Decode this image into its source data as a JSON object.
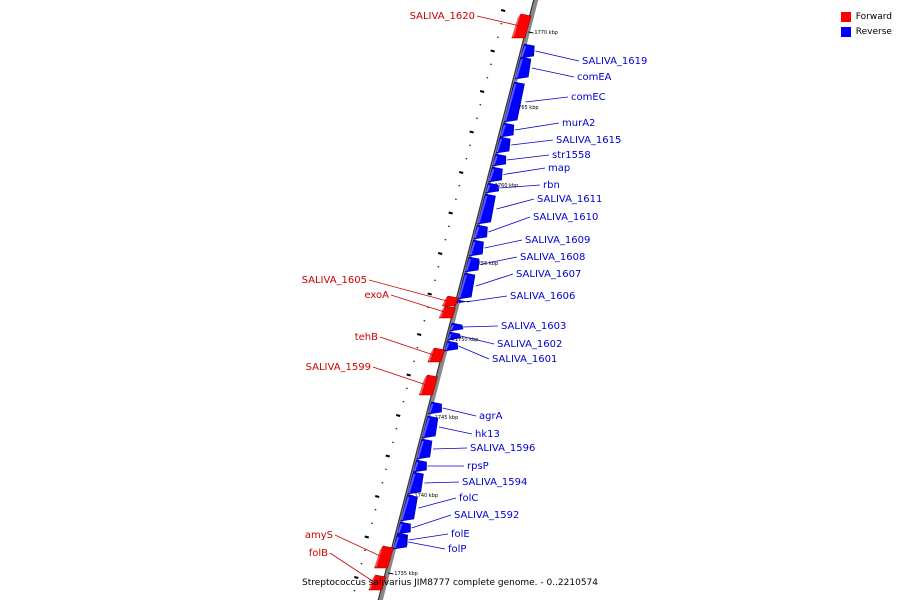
{
  "legend": {
    "forward_label": "Forward",
    "reverse_label": "Reverse",
    "forward_color": "#ff0000",
    "reverse_color": "#0000ff"
  },
  "caption": "Streptococcus salivarius JIM8777 complete genome. - 0..2210574",
  "colors": {
    "forward": "#ff0000",
    "reverse": "#0000ff",
    "forward_label": "#cc0000",
    "reverse_label": "#0000cc",
    "backbone": "#888888"
  },
  "scale_ticks": [
    "1770 kbp",
    "1765 kbp",
    "1760 kbp",
    "1755 kbp",
    "1750 kbp",
    "1745 kbp",
    "1740 kbp",
    "1735 kbp"
  ],
  "genes": [
    {
      "name": "SALIVA_1620",
      "strand": "forward"
    },
    {
      "name": "SALIVA_1619",
      "strand": "reverse"
    },
    {
      "name": "comEA",
      "strand": "reverse"
    },
    {
      "name": "comEC",
      "strand": "reverse"
    },
    {
      "name": "murA2",
      "strand": "reverse"
    },
    {
      "name": "SALIVA_1615",
      "strand": "reverse"
    },
    {
      "name": "str1558",
      "strand": "reverse"
    },
    {
      "name": "map",
      "strand": "reverse"
    },
    {
      "name": "rbn",
      "strand": "reverse"
    },
    {
      "name": "SALIVA_1611",
      "strand": "reverse"
    },
    {
      "name": "SALIVA_1610",
      "strand": "reverse"
    },
    {
      "name": "SALIVA_1609",
      "strand": "reverse"
    },
    {
      "name": "SALIVA_1608",
      "strand": "reverse"
    },
    {
      "name": "SALIVA_1607",
      "strand": "reverse"
    },
    {
      "name": "SALIVA_1606",
      "strand": "reverse"
    },
    {
      "name": "SALIVA_1605",
      "strand": "forward"
    },
    {
      "name": "exoA",
      "strand": "forward"
    },
    {
      "name": "SALIVA_1603",
      "strand": "reverse"
    },
    {
      "name": "SALIVA_1602",
      "strand": "reverse"
    },
    {
      "name": "SALIVA_1601",
      "strand": "reverse"
    },
    {
      "name": "tehB",
      "strand": "forward"
    },
    {
      "name": "SALIVA_1599",
      "strand": "forward"
    },
    {
      "name": "agrA",
      "strand": "reverse"
    },
    {
      "name": "hk13",
      "strand": "reverse"
    },
    {
      "name": "SALIVA_1596",
      "strand": "reverse"
    },
    {
      "name": "rpsP",
      "strand": "reverse"
    },
    {
      "name": "SALIVA_1594",
      "strand": "reverse"
    },
    {
      "name": "folC",
      "strand": "reverse"
    },
    {
      "name": "SALIVA_1592",
      "strand": "reverse"
    },
    {
      "name": "amyS",
      "strand": "forward"
    },
    {
      "name": "folE",
      "strand": "reverse"
    },
    {
      "name": "folP",
      "strand": "reverse"
    },
    {
      "name": "folB",
      "strand": "forward"
    }
  ]
}
